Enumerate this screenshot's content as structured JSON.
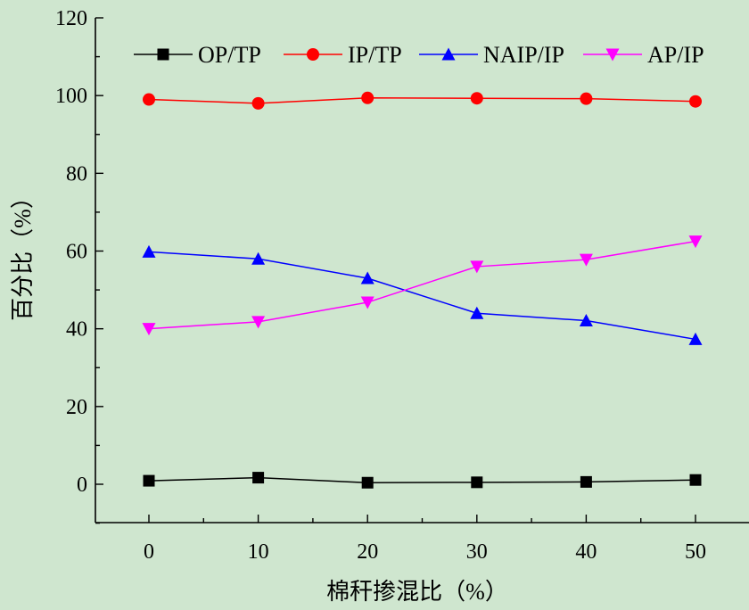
{
  "chart_data": {
    "type": "line",
    "title": "",
    "xlabel": "棉秆掺混比（%）",
    "ylabel": "百分比（%）",
    "xlim": [
      -10,
      55
    ],
    "ylim": [
      -10,
      120
    ],
    "x_ticks": [
      0,
      10,
      20,
      30,
      40,
      50
    ],
    "y_ticks": [
      0,
      20,
      40,
      60,
      80,
      100,
      120
    ],
    "grid": false,
    "legend_position": "top",
    "x": [
      0,
      10,
      20,
      30,
      40,
      50
    ],
    "series": [
      {
        "name": "OP/TP",
        "marker": "square",
        "color": "#000000",
        "values": [
          0.9,
          1.7,
          0.4,
          0.5,
          0.6,
          1.1
        ]
      },
      {
        "name": "IP/TP",
        "marker": "circle",
        "color": "#ff0000",
        "values": [
          99.0,
          98.0,
          99.4,
          99.3,
          99.2,
          98.5
        ]
      },
      {
        "name": "NAIP/IP",
        "marker": "triangle-up",
        "color": "#0000ff",
        "values": [
          59.8,
          58.0,
          53.0,
          44.0,
          42.1,
          37.3
        ]
      },
      {
        "name": "AP/IP",
        "marker": "triangle-down",
        "color": "#ff00ff",
        "values": [
          40.0,
          41.8,
          46.8,
          56.0,
          57.8,
          62.5
        ]
      }
    ]
  }
}
